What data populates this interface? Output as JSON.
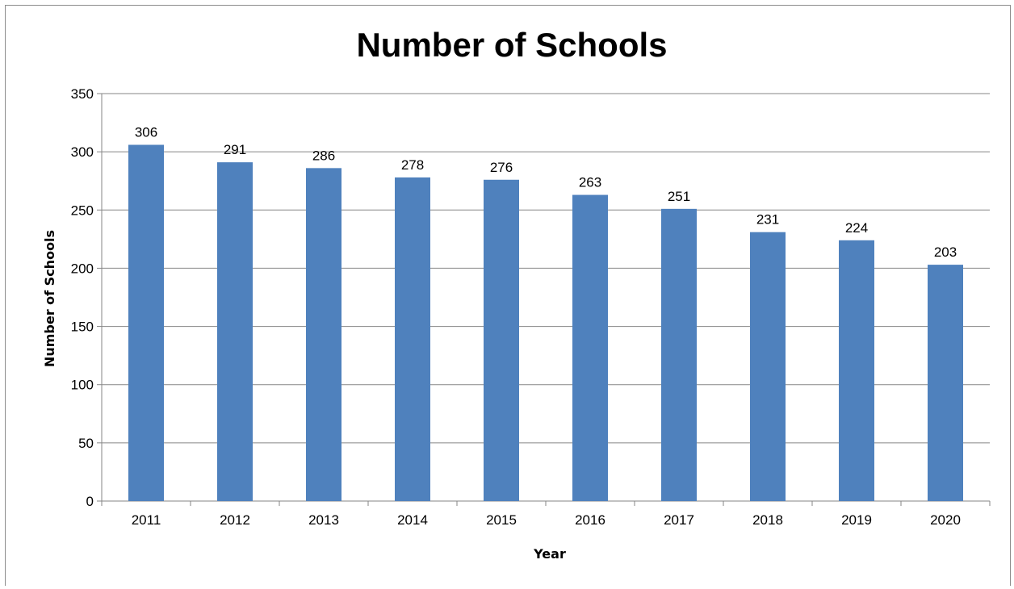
{
  "chart_data": {
    "type": "bar",
    "title": "Number of Schools",
    "xlabel": "Year",
    "ylabel": "Number of Schools",
    "categories": [
      "2011",
      "2012",
      "2013",
      "2014",
      "2015",
      "2016",
      "2017",
      "2018",
      "2019",
      "2020"
    ],
    "values": [
      306,
      291,
      286,
      278,
      276,
      263,
      251,
      231,
      224,
      203
    ],
    "ylim": [
      0,
      350
    ],
    "yticks": [
      0,
      50,
      100,
      150,
      200,
      250,
      300,
      350
    ],
    "grid": true,
    "legend": "none",
    "bar_color": "#4f81bd"
  }
}
